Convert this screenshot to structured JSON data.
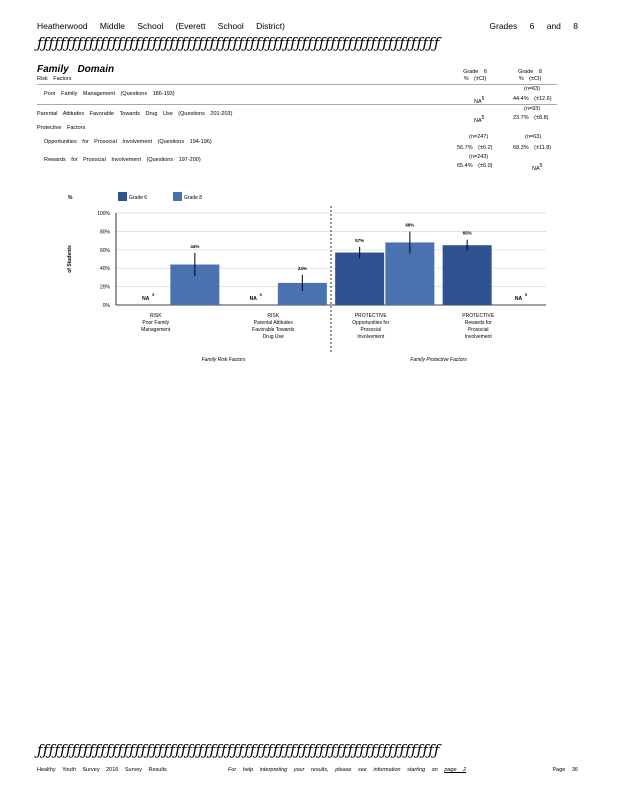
{
  "header": {
    "school": "Heatherwood Middle School (Everett School District)",
    "grades": "Grades 6 and 8",
    "rule_glyphs": "ƒƒƒƒƒƒƒƒƒƒƒƒƒƒƒƒƒƒƒƒƒƒƒƒƒƒƒƒƒƒƒƒƒƒƒƒƒƒƒƒƒƒƒƒƒƒƒƒƒƒƒƒƒƒƒƒƒƒƒƒƒƒƒƒƒƒƒƒƒƒ"
  },
  "domain": {
    "title": "Family Domain",
    "risk_heading": "Risk Factors",
    "protective_heading": "Protective Factors",
    "col_grade6": "Grade 6",
    "col_grade8": "Grade 8",
    "col_sub6": "% (±CI)",
    "col_sub8": "% (±CI)",
    "rows": [
      {
        "label": "Poor Family Management (Questions 186-193)",
        "n6": "",
        "n8": "(n=63)",
        "g6": "NA",
        "g6_sup": "5",
        "g8": "44.4%",
        "g8_ci": "(±12.6)"
      },
      {
        "label": "Parental Attitudes Favorable Towards Drug Use (Questions 201-203)",
        "n6": "",
        "n8": "(n=93)",
        "g6": "NA",
        "g6_sup": "5",
        "g8": "23.7%",
        "g8_ci": "(±8.8)"
      },
      {
        "label": "Opportunities for Prosocial Involvement (Questions 194-196)",
        "n6": "(n=247)",
        "n8": "(n=63)",
        "g6": "56.7%",
        "g6_ci": "(±6.2)",
        "g8": "68.3%",
        "g8_ci": "(±11.8)"
      },
      {
        "label": "Rewards for Prosocial Involvement (Questions 197-200)",
        "n6": "(n=243)",
        "n8": "",
        "g6": "65.4%",
        "g6_ci": "(±6.0)",
        "g8": "NA",
        "g8_sup": "5"
      }
    ]
  },
  "colors": {
    "grade6": "#2f5390",
    "grade8": "#4a72b0"
  },
  "chart_data": {
    "type": "bar",
    "ylabel": "% of Students",
    "ylim": [
      0,
      100
    ],
    "yticks": [
      "0%",
      "20%",
      "40%",
      "60%",
      "80%",
      "100%"
    ],
    "grid": true,
    "legend_position": "top-left",
    "categories": [
      [
        "RISK",
        "Poor Family",
        "Management"
      ],
      [
        "RISK",
        "Parental Attitudes",
        "Favorable Towards",
        "Drug Use"
      ],
      [
        "PROTECTIVE",
        "Opportunities for",
        "Prosocial",
        "Involvement"
      ],
      [
        "PROTECTIVE",
        "Rewards for",
        "Prosocial",
        "Involvement"
      ]
    ],
    "series": [
      {
        "name": "Grade 6",
        "values": [
          null,
          null,
          57,
          65
        ],
        "labels": [
          "NA",
          "NA",
          "57%",
          "65%"
        ],
        "ci": [
          null,
          null,
          6.2,
          6.0
        ],
        "sup": [
          "5",
          "5",
          "",
          ""
        ]
      },
      {
        "name": "Grade 8",
        "values": [
          44,
          24,
          68,
          null
        ],
        "labels": [
          "44%",
          "24%",
          "68%",
          "NA"
        ],
        "ci": [
          12.6,
          8.8,
          11.8,
          null
        ],
        "sup": [
          "",
          "",
          "",
          "5"
        ]
      }
    ],
    "group_labels": [
      "Family Risk Factors",
      "Family Protective Factors"
    ]
  },
  "footer": {
    "left": "Healthy Youth Survey 2016 Survey Results",
    "center": "For help interpreting your results, please see information starting on",
    "link": "page 2",
    "page": "Page 36"
  }
}
